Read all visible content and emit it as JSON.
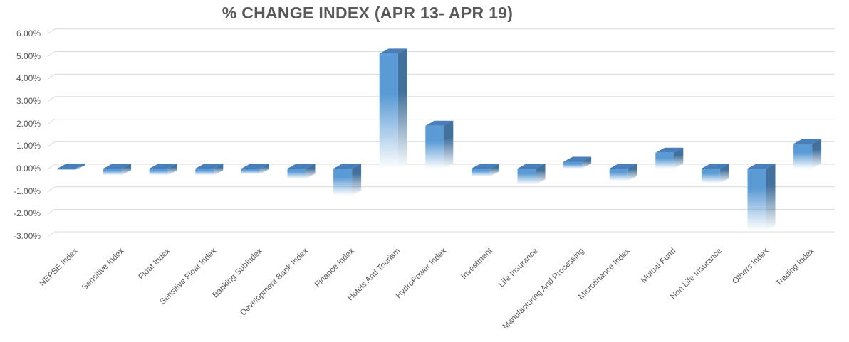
{
  "title": "% CHANGE INDEX (APR 13- APR 19)",
  "chart_data": {
    "type": "bar",
    "style": "3d-bar-excel",
    "title": "% CHANGE INDEX (APR 13- APR 19)",
    "xlabel": "",
    "ylabel": "",
    "unit": "percent",
    "categories": [
      "NEPSE Index",
      "Sensitive Index",
      "Float Index",
      "Sensitive Float Index",
      "Banking SubIndex",
      "Development Bank Index",
      "Finance Index",
      "Hotels And Tourism",
      "HydroPower Index",
      "Investment",
      "Life Insurance",
      "Manufacturing And Processing",
      "Microfinance Index",
      "Mutual Fund",
      "Non Life Insurance",
      "Others Index",
      "Trading Index"
    ],
    "values": [
      -0.07,
      -0.3,
      -0.3,
      -0.3,
      -0.25,
      -0.45,
      -1.2,
      5.1,
      1.9,
      -0.35,
      -0.7,
      0.3,
      -0.55,
      0.7,
      -0.65,
      -2.75,
      1.1
    ],
    "ylim": [
      -3,
      6
    ],
    "ytick_step": 1,
    "ytick_labels": [
      "6.00%",
      "5.00%",
      "4.00%",
      "3.00%",
      "2.00%",
      "1.00%",
      "0.00%",
      "-1.00%",
      "-2.00%",
      "-3.00%"
    ],
    "grid": true,
    "legend_position": "none",
    "colors": {
      "bar_front": "#5b9bd5",
      "bar_top": "#4a7ebb",
      "bar_side": "#41719c",
      "gridline": "#d9d9d9",
      "axis_text": "#595959",
      "title_text": "#595959",
      "background": "#ffffff"
    }
  }
}
